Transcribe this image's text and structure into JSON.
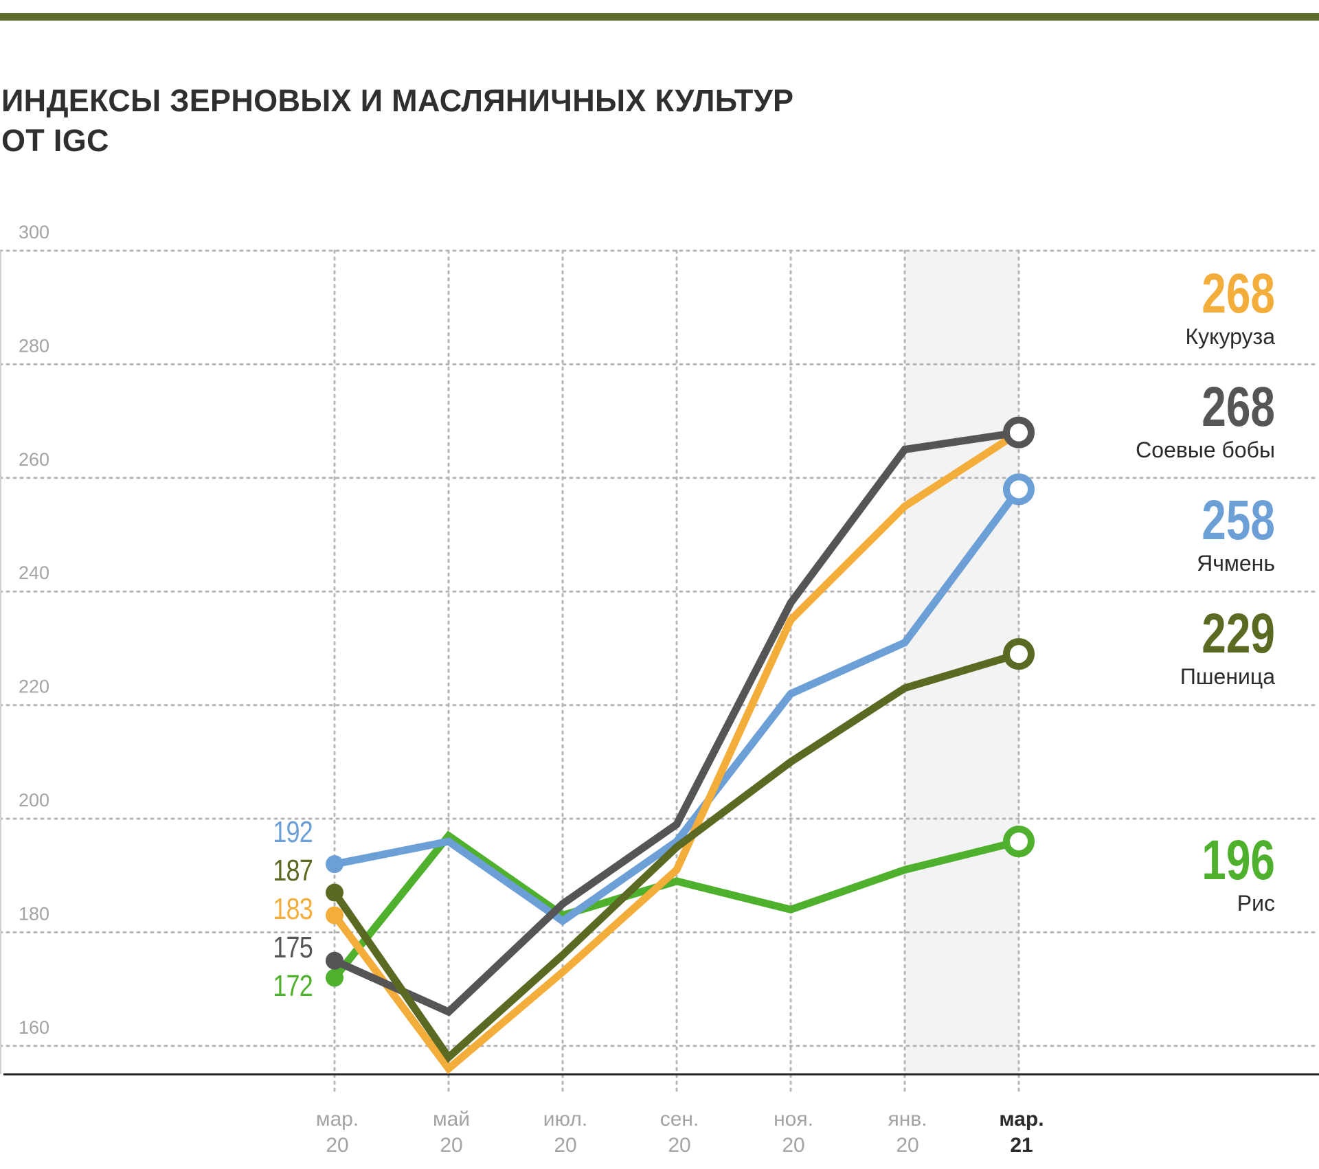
{
  "title_lines": [
    "ИНДЕКСЫ ЗЕРНОВЫХ И МАСЛЯНИЧНЫХ КУЛЬТУР",
    "ОТ IGC"
  ],
  "colors": {
    "Кукуруза": "#f2ad3b",
    "Соевые бобы": "#555555",
    "Ячмень": "#6b9fd6",
    "Пшеница": "#5a6a22",
    "Рис": "#4fb02e",
    "rule": "#5e6d2d",
    "grid": "#b5b5b5",
    "axis_text": "#a3a3a3",
    "highlight_band": "#f3f3f3"
  },
  "chart_data": {
    "type": "line",
    "title": "ИНДЕКСЫ ЗЕРНОВЫХ И МАСЛЯНИЧНЫХ КУЛЬТУР ОТ IGC",
    "categories": [
      {
        "month": "мар.",
        "year": "20"
      },
      {
        "month": "май",
        "year": "20"
      },
      {
        "month": "июл.",
        "year": "20"
      },
      {
        "month": "сен.",
        "year": "20"
      },
      {
        "month": "ноя.",
        "year": "20"
      },
      {
        "month": "янв.",
        "year": "20"
      },
      {
        "month": "мар.",
        "year": "21"
      }
    ],
    "highlight_category_index": 6,
    "shaded_band": [
      "янв. 20",
      "мар. 21"
    ],
    "y_ticks": [
      "300",
      "280",
      "260",
      "240",
      "220",
      "200",
      "180",
      "160"
    ],
    "ylim": [
      155,
      300
    ],
    "grid": true,
    "series": [
      {
        "name": "Кукуруза",
        "values": [
          183,
          156,
          173,
          191,
          235,
          255,
          268
        ],
        "start_label": "183",
        "end_label": "268"
      },
      {
        "name": "Соевые бобы",
        "values": [
          175,
          166,
          185,
          199,
          238,
          265,
          268
        ],
        "start_label": "175",
        "end_label": "268"
      },
      {
        "name": "Ячмень",
        "values": [
          192,
          196,
          182,
          196,
          222,
          231,
          258
        ],
        "start_label": "192",
        "end_label": "258"
      },
      {
        "name": "Пшеница",
        "values": [
          187,
          158,
          176,
          195,
          210,
          223,
          229
        ],
        "start_label": "187",
        "end_label": "229"
      },
      {
        "name": "Рис",
        "values": [
          172,
          197,
          183,
          189,
          184,
          191,
          196
        ],
        "start_label": "172",
        "end_label": "196"
      }
    ]
  }
}
